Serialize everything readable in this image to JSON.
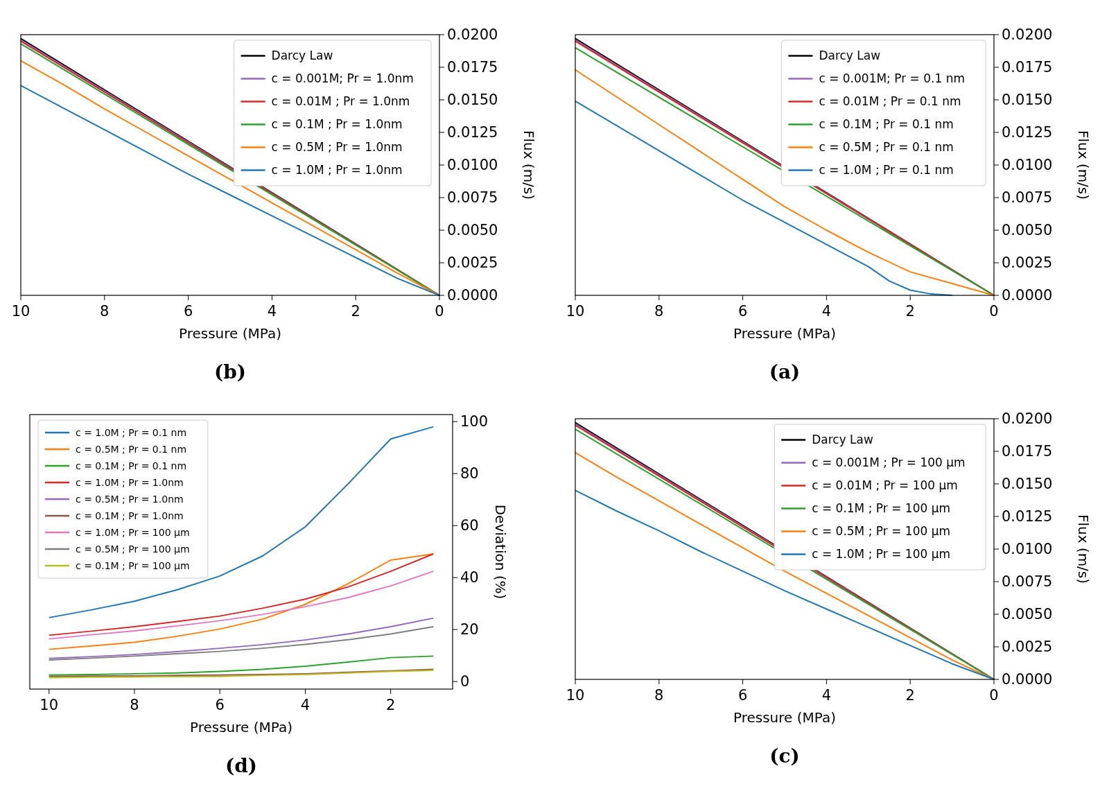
{
  "chart_data": [
    {
      "type": "line",
      "title": "(b)",
      "xlabel": "Pressure (MPa)",
      "ylabel": "Flux (m/s)",
      "xlim": [
        10,
        0
      ],
      "xticks": [
        10,
        8,
        6,
        4,
        2,
        0
      ],
      "ylim": [
        0,
        0.02
      ],
      "yticks": [
        {
          "value": 0,
          "label": "0.0000"
        },
        {
          "value": 0.0025,
          "label": "0.0025"
        },
        {
          "value": 0.005,
          "label": "0.0050"
        },
        {
          "value": 0.0075,
          "label": "0.0075"
        },
        {
          "value": 0.01,
          "label": "0.0100"
        },
        {
          "value": 0.0125,
          "label": "0.0125"
        },
        {
          "value": 0.015,
          "label": "0.0150"
        },
        {
          "value": 0.0175,
          "label": "0.0175"
        },
        {
          "value": 0.02,
          "label": "0.0200"
        }
      ],
      "legend": "top right",
      "grid": false,
      "series": [
        {
          "name": "Darcy Law",
          "color": "#000000",
          "x": [
            0,
            10
          ],
          "values": [
            0,
            0.0197
          ]
        },
        {
          "name": "c = 0.001M; Pr = 1.0nm",
          "color": "#9467bd",
          "x": [
            0,
            10
          ],
          "values": [
            0,
            0.0196
          ]
        },
        {
          "name": "c = 0.01M ; Pr = 1.0nm",
          "color": "#d62728",
          "x": [
            0,
            10
          ],
          "values": [
            0,
            0.0195
          ]
        },
        {
          "name": "c = 0.1M ; Pr = 1.0nm",
          "color": "#2ca02c",
          "x": [
            0,
            10
          ],
          "values": [
            0,
            0.0193
          ]
        },
        {
          "name": "c = 0.5M ; Pr = 1.0nm",
          "color": "#ff7f0e",
          "x": [
            0,
            1,
            2,
            3,
            4,
            5,
            6,
            7,
            8,
            9,
            10
          ],
          "values": [
            0,
            0.0017,
            0.0035,
            0.0053,
            0.0071,
            0.0089,
            0.0107,
            0.0125,
            0.0143,
            0.0162,
            0.018
          ]
        },
        {
          "name": "c = 1.0M ; Pr = 1.0nm",
          "color": "#1f77b4",
          "x": [
            0,
            1,
            2,
            3,
            4,
            5,
            6,
            7,
            8,
            9,
            10
          ],
          "values": [
            0,
            0.0013,
            0.0029,
            0.0045,
            0.0061,
            0.0077,
            0.0093,
            0.011,
            0.0127,
            0.0144,
            0.0161
          ]
        }
      ]
    },
    {
      "type": "line",
      "title": "(a)",
      "xlabel": "Pressure (MPa)",
      "ylabel": "Flux (m/s)",
      "xlim": [
        10,
        0
      ],
      "xticks": [
        10,
        8,
        6,
        4,
        2,
        0
      ],
      "ylim": [
        0,
        0.02
      ],
      "yticks": [
        {
          "value": 0,
          "label": "0.0000"
        },
        {
          "value": 0.0025,
          "label": "0.0025"
        },
        {
          "value": 0.005,
          "label": "0.0050"
        },
        {
          "value": 0.0075,
          "label": "0.0075"
        },
        {
          "value": 0.01,
          "label": "0.0100"
        },
        {
          "value": 0.0125,
          "label": "0.0125"
        },
        {
          "value": 0.015,
          "label": "0.0150"
        },
        {
          "value": 0.0175,
          "label": "0.0175"
        },
        {
          "value": 0.02,
          "label": "0.0200"
        }
      ],
      "legend": "top right",
      "grid": false,
      "series": [
        {
          "name": "Darcy Law",
          "color": "#000000",
          "x": [
            0,
            10
          ],
          "values": [
            0,
            0.0197
          ]
        },
        {
          "name": "c = 0.001M; Pr = 0.1 nm",
          "color": "#9467bd",
          "x": [
            0,
            10
          ],
          "values": [
            0,
            0.0196
          ]
        },
        {
          "name": "c = 0.01M ; Pr = 0.1 nm",
          "color": "#d62728",
          "x": [
            0,
            10
          ],
          "values": [
            0,
            0.0195
          ]
        },
        {
          "name": "c = 0.1M ; Pr = 0.1 nm",
          "color": "#2ca02c",
          "x": [
            0,
            10
          ],
          "values": [
            0,
            0.019
          ]
        },
        {
          "name": "c = 0.5M ; Pr = 0.1 nm",
          "color": "#ff7f0e",
          "x": [
            0,
            1,
            2,
            3,
            4,
            5,
            6,
            7,
            8,
            9,
            10
          ],
          "values": [
            0,
            0.0009,
            0.0018,
            0.0033,
            0.005,
            0.0068,
            0.0089,
            0.011,
            0.0131,
            0.0152,
            0.0173
          ]
        },
        {
          "name": "c = 1.0M ; Pr = 0.1 nm",
          "color": "#1f77b4",
          "x": [
            1,
            1.5,
            2,
            2.5,
            3,
            4,
            5,
            6,
            7,
            8,
            9,
            10
          ],
          "values": [
            0,
            0.0001,
            0.0004,
            0.0011,
            0.0022,
            0.0039,
            0.0056,
            0.0073,
            0.0092,
            0.0111,
            0.013,
            0.0149
          ]
        }
      ]
    },
    {
      "type": "line",
      "title": "(d)",
      "xlabel": "Pressure (MPa)",
      "ylabel": "Deviation (%)",
      "xlim": [
        10.45,
        0.55
      ],
      "xticks": [
        10,
        8,
        6,
        4,
        2
      ],
      "ylim": [
        -2.9,
        102.7
      ],
      "yticks": [
        0,
        20,
        40,
        60,
        80,
        100
      ],
      "legend": "top left",
      "grid": false,
      "series": [
        {
          "name": "c = 1.0M ; Pr = 0.1 nm",
          "color": "#1f77b4",
          "x": [
            10,
            9,
            8,
            7,
            6,
            5,
            4,
            3,
            2,
            1
          ],
          "values": [
            24.6,
            27.6,
            30.9,
            35.3,
            40.6,
            48.3,
            59.5,
            76,
            93.3,
            98
          ]
        },
        {
          "name": "c = 0.5M ; Pr = 0.1 nm",
          "color": "#ff7f0e",
          "x": [
            10,
            9,
            8,
            7,
            6,
            5,
            4,
            3,
            2,
            1
          ],
          "values": [
            12.4,
            13.7,
            15.1,
            17.4,
            20.2,
            24,
            29.7,
            37.6,
            46.7,
            49.1
          ]
        },
        {
          "name": "c = 0.1M ; Pr = 0.1 nm",
          "color": "#2ca02c",
          "x": [
            10,
            9,
            8,
            7,
            6,
            5,
            4,
            3,
            2,
            1
          ],
          "values": [
            2.5,
            2.7,
            3,
            3.3,
            3.9,
            4.7,
            5.9,
            7.5,
            9.2,
            9.8
          ]
        },
        {
          "name": "c = 1.0M ; Pr = 1.0nm",
          "color": "#d62728",
          "x": [
            10,
            9,
            8,
            7,
            6,
            5,
            4,
            3,
            2,
            1
          ],
          "values": [
            17.8,
            19.4,
            21.1,
            23.1,
            25.2,
            28.2,
            31.7,
            36.4,
            42.4,
            49.1
          ]
        },
        {
          "name": "c = 0.5M ; Pr = 1.0nm",
          "color": "#9467bd",
          "x": [
            10,
            9,
            8,
            7,
            6,
            5,
            4,
            3,
            2,
            1
          ],
          "values": [
            8.9,
            9.6,
            10.4,
            11.5,
            12.8,
            14.2,
            16,
            18.3,
            21.1,
            24.4
          ]
        },
        {
          "name": "c = 0.1M ; Pr = 1.0nm",
          "color": "#8c564b",
          "x": [
            10,
            9,
            8,
            7,
            6,
            5,
            4,
            3,
            2,
            1
          ],
          "values": [
            2,
            2.1,
            2.2,
            2.4,
            2.5,
            2.7,
            3,
            3.6,
            4.1,
            4.7
          ]
        },
        {
          "name": "c = 1.0M ; Pr = 100 µm",
          "color": "#e377c2",
          "x": [
            10,
            9,
            8,
            7,
            6,
            5,
            4,
            3,
            2,
            1
          ],
          "values": [
            16.4,
            18,
            19.5,
            21.4,
            23.4,
            25.8,
            28.8,
            32.3,
            36.8,
            42.4
          ]
        },
        {
          "name": "c = 0.5M ; Pr = 100 µm",
          "color": "#7f7f7f",
          "x": [
            10,
            9,
            8,
            7,
            6,
            5,
            4,
            3,
            2,
            1
          ],
          "values": [
            8.3,
            9,
            9.8,
            10.7,
            11.6,
            12.8,
            14.3,
            16.1,
            18.3,
            21.1
          ]
        },
        {
          "name": "c = 0.1M ; Pr = 100 µm",
          "color": "#bcbd22",
          "x": [
            10,
            9,
            8,
            7,
            6,
            5,
            4,
            3,
            2,
            1
          ],
          "values": [
            1.5,
            1.7,
            1.8,
            1.9,
            2,
            2.4,
            2.7,
            3.3,
            3.9,
            4.3
          ]
        }
      ]
    },
    {
      "type": "line",
      "title": "(c)",
      "xlabel": "Pressure (MPa)",
      "ylabel": "Flux (m/s)",
      "xlim": [
        10,
        0
      ],
      "xticks": [
        10,
        8,
        6,
        4,
        2,
        0
      ],
      "ylim": [
        0,
        0.02
      ],
      "yticks": [
        {
          "value": 0,
          "label": "0.0000"
        },
        {
          "value": 0.0025,
          "label": "0.0025"
        },
        {
          "value": 0.005,
          "label": "0.0050"
        },
        {
          "value": 0.0075,
          "label": "0.0075"
        },
        {
          "value": 0.01,
          "label": "0.0100"
        },
        {
          "value": 0.0125,
          "label": "0.0125"
        },
        {
          "value": 0.015,
          "label": "0.0150"
        },
        {
          "value": 0.0175,
          "label": "0.0175"
        },
        {
          "value": 0.02,
          "label": "0.0200"
        }
      ],
      "legend": "top right",
      "grid": false,
      "series": [
        {
          "name": "Darcy Law",
          "color": "#000000",
          "x": [
            0,
            10
          ],
          "values": [
            0,
            0.0197
          ]
        },
        {
          "name": "c = 0.001M ; Pr = 100 µm",
          "color": "#9467bd",
          "x": [
            0,
            10
          ],
          "values": [
            0,
            0.0196
          ]
        },
        {
          "name": "c = 0.01M ; Pr = 100 µm",
          "color": "#d62728",
          "x": [
            0,
            10
          ],
          "values": [
            0,
            0.0195
          ]
        },
        {
          "name": "c = 0.1M ; Pr = 100 µm",
          "color": "#2ca02c",
          "x": [
            0,
            10
          ],
          "values": [
            0,
            0.0192
          ]
        },
        {
          "name": "c = 0.5M ; Pr = 100 µm",
          "color": "#ff7f0e",
          "x": [
            0,
            1,
            2,
            3,
            4,
            5,
            6,
            7,
            8,
            9,
            10
          ],
          "values": [
            0,
            0.0015,
            0.0032,
            0.0049,
            0.0066,
            0.0083,
            0.0101,
            0.0119,
            0.0137,
            0.0155,
            0.0174
          ]
        },
        {
          "name": "c = 1.0M ; Pr = 100 µm",
          "color": "#1f77b4",
          "x": [
            0,
            1,
            2,
            3,
            4,
            5,
            6,
            7,
            8,
            9,
            10
          ],
          "values": [
            0,
            0.0012,
            0.0026,
            0.004,
            0.0054,
            0.0068,
            0.0083,
            0.0098,
            0.0114,
            0.0129,
            0.0145
          ]
        }
      ]
    }
  ]
}
